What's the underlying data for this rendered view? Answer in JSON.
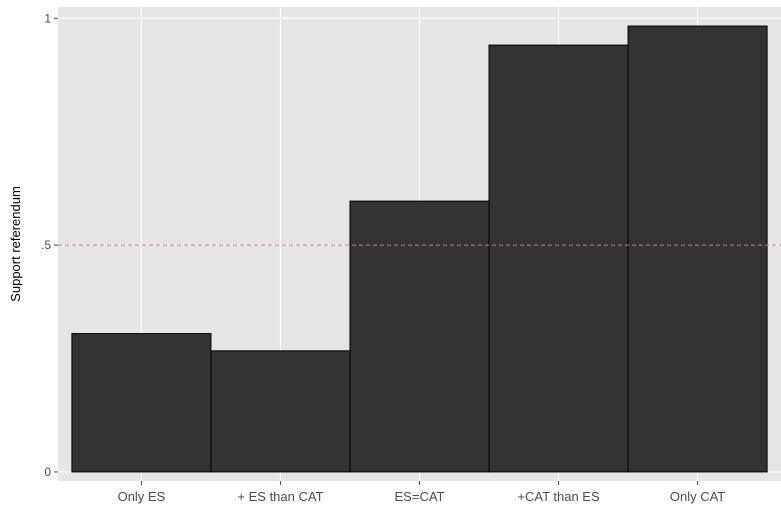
{
  "chart_data": {
    "type": "bar",
    "title": "",
    "xlabel": "",
    "ylabel": "Support referendum",
    "categories": [
      "Only ES",
      "+ ES than CAT",
      "ES=CAT",
      "+CAT than ES",
      "Only CAT"
    ],
    "values": [
      0.305,
      0.267,
      0.597,
      0.941,
      0.983
    ],
    "ylim": [
      -0.02,
      1.025
    ],
    "yticks": [
      {
        "value": 0,
        "label": "0"
      },
      {
        "value": 0.5,
        "label": ".5"
      },
      {
        "value": 1,
        "label": "1"
      }
    ],
    "reference_line": {
      "value": 0.5,
      "style": "dashed",
      "color": "#e8756c"
    },
    "grid": true,
    "colors": {
      "panel_background": "#e5e5e5",
      "grid_major": "#ffffff",
      "bar_fill": "#333333",
      "bar_stroke": "#000000",
      "tick_text": "#4d4d4d",
      "axis_title": "#000000"
    }
  }
}
